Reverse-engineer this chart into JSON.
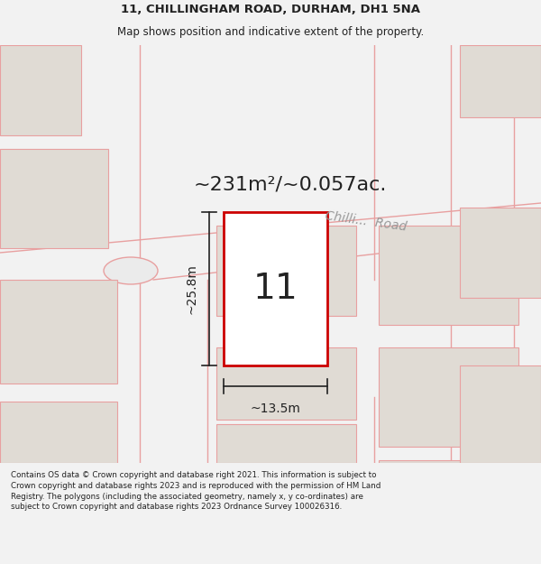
{
  "title_line1": "11, CHILLINGHAM ROAD, DURHAM, DH1 5NA",
  "title_line2": "Map shows position and indicative extent of the property.",
  "area_text": "~231m²/~0.057ac.",
  "house_number": "11",
  "dim_width": "~13.5m",
  "dim_height": "~25.8m",
  "road_label": "Chilli...  Road",
  "footer_text": "Contains OS data © Crown copyright and database right 2021. This information is subject to Crown copyright and database rights 2023 and is reproduced with the permission of HM Land Registry. The polygons (including the associated geometry, namely x, y co-ordinates) are subject to Crown copyright and database rights 2023 Ordnance Survey 100026316.",
  "bg_color": "#f2f2f2",
  "map_bg": "#ebebeb",
  "plot_fill": "#ffffff",
  "plot_border": "#cc0000",
  "road_line_color": "#e8a0a0",
  "building_fill": "#e0dbd4",
  "building_border": "#e8a0a0",
  "title_bg": "#ffffff",
  "footer_bg": "#ffffff",
  "dim_line_color": "#222222",
  "text_color": "#222222",
  "road_label_color": "#999999"
}
